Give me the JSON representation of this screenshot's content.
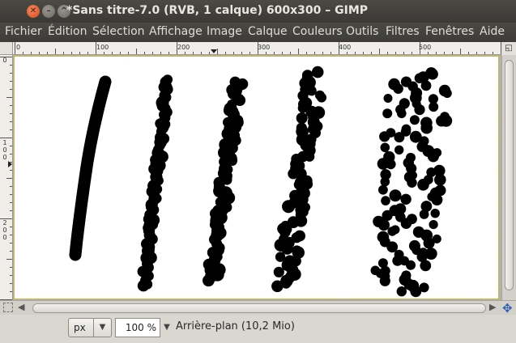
{
  "window": {
    "title": "*Sans titre-7.0 (RVB, 1 calque) 600x300 – GIMP",
    "close_glyph": "✕",
    "min_glyph": "–",
    "max_glyph": "^"
  },
  "menu": {
    "items": [
      "Fichier",
      "Édition",
      "Sélection",
      "Affichage",
      "Image",
      "Calque",
      "Couleurs",
      "Outils",
      "Filtres",
      "Fenêtres",
      "Aide"
    ]
  },
  "ruler_top": {
    "labels": [
      "0",
      "100",
      "200",
      "300",
      "400",
      "500"
    ]
  },
  "ruler_left": {
    "labels": [
      "0",
      "1 0 0",
      "2 0 0"
    ]
  },
  "status": {
    "unit": "px",
    "zoom": "100 %",
    "layer_info": "Arrière-plan (10,2 Mio)"
  },
  "icons": {
    "unit_dropdown": "chevron-down-icon",
    "zoom_dropdown": "chevron-down-icon",
    "navigate": "navigate-icon",
    "quick_mask": "quick-mask-icon"
  },
  "colors": {
    "titlebar": "#3c3b37",
    "close_button": "#e95420",
    "canvas_bg": "#ffffff",
    "stroke": "#000000"
  }
}
